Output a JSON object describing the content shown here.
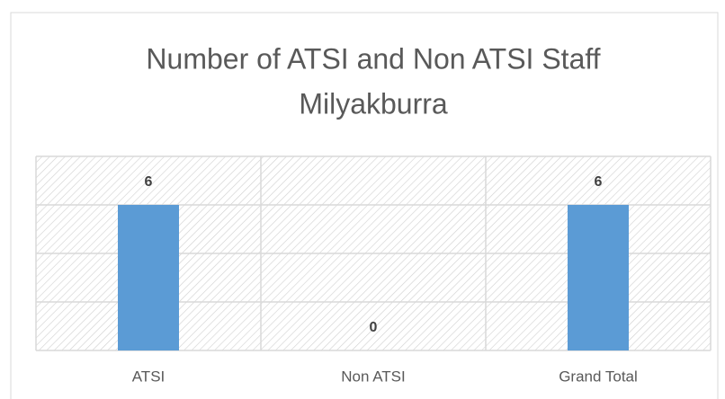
{
  "chart_data": {
    "type": "bar",
    "title": [
      "Number of ATSI and Non ATSI Staff",
      "Milyakburra"
    ],
    "categories": [
      "ATSI",
      "Non ATSI",
      "Grand Total"
    ],
    "values": [
      6,
      0,
      6
    ],
    "color": "#5b9bd5",
    "ylim": [
      0,
      8
    ],
    "yticks": [
      0,
      2,
      4,
      6,
      8
    ],
    "grid": true
  }
}
